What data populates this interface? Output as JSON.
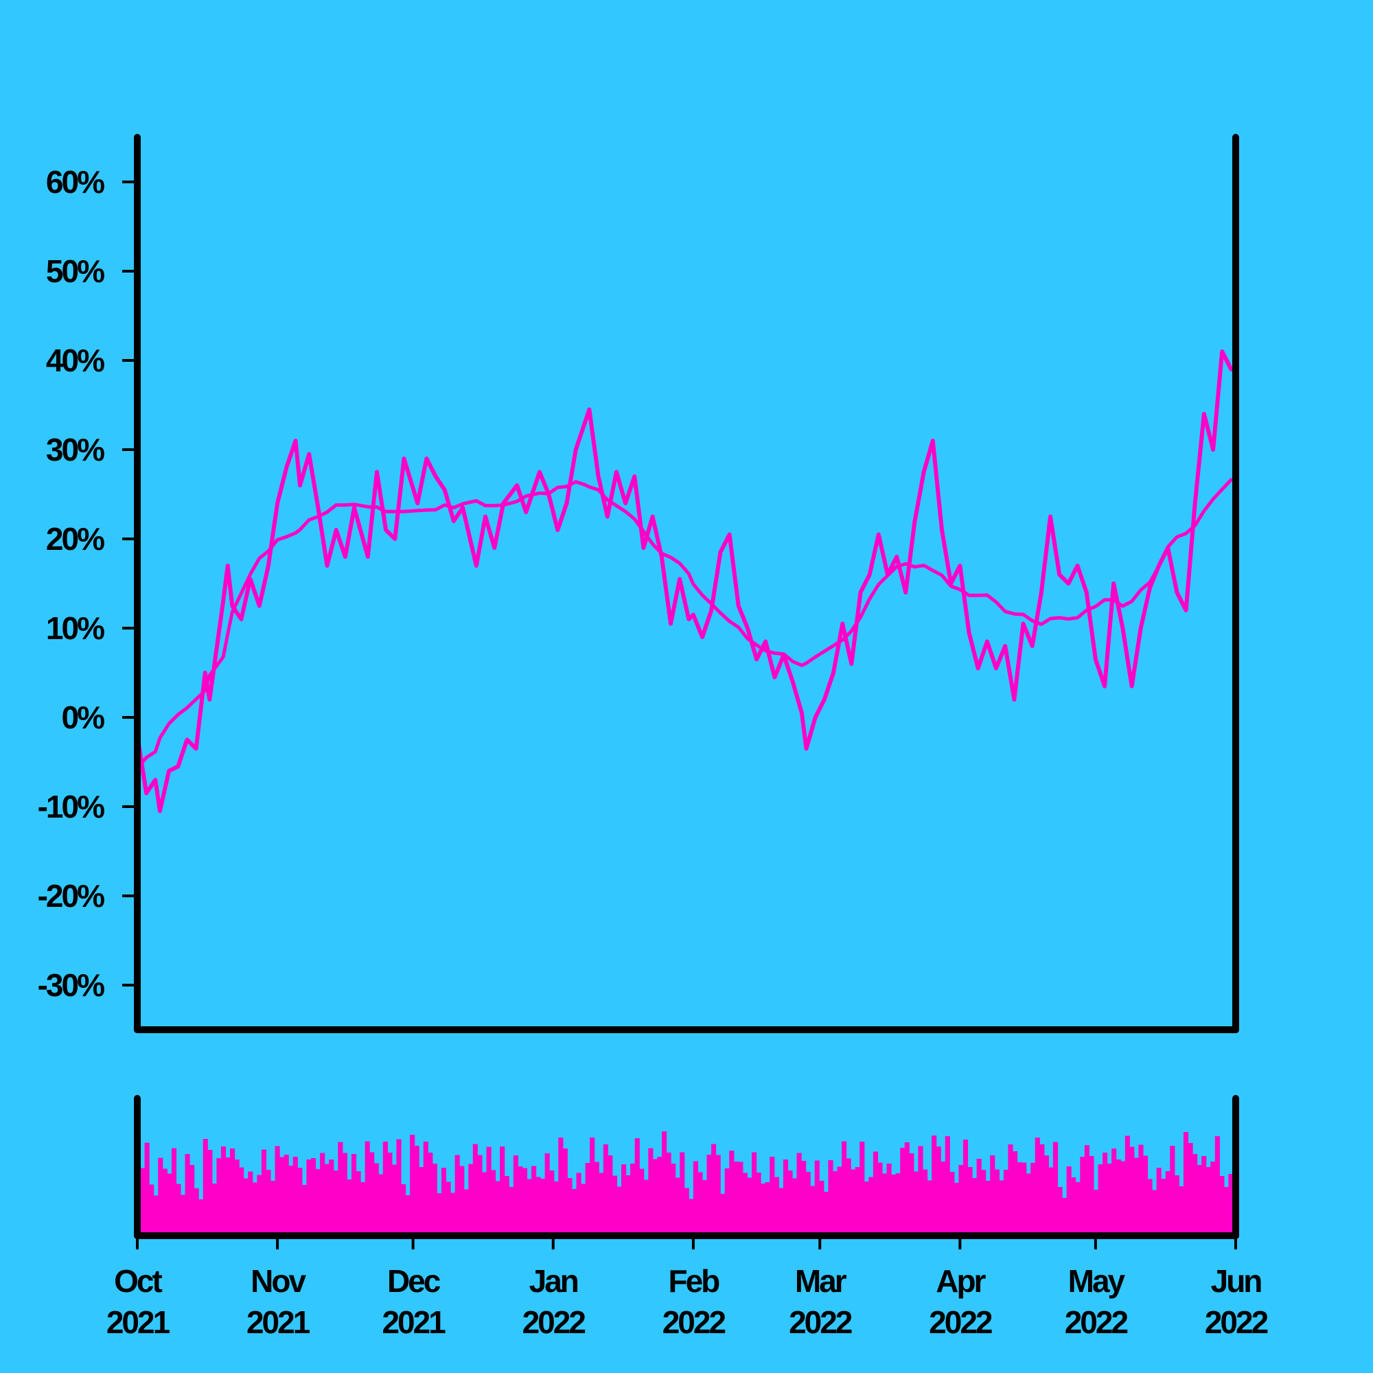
{
  "colors": {
    "background": "#33c7ff",
    "series": "#ff00c8",
    "axes": "#000000"
  },
  "chart_data": {
    "type": "line",
    "x_axis": {
      "type": "date",
      "range": [
        "2021-10-01",
        "2022-06-01"
      ],
      "ticks": [
        {
          "date": "2021-10-01",
          "month": "Oct",
          "year": "2021"
        },
        {
          "date": "2021-11-01",
          "month": "Nov",
          "year": "2021"
        },
        {
          "date": "2021-12-01",
          "month": "Dec",
          "year": "2021"
        },
        {
          "date": "2022-01-01",
          "month": "Jan",
          "year": "2022"
        },
        {
          "date": "2022-02-01",
          "month": "Feb",
          "year": "2022"
        },
        {
          "date": "2022-03-01",
          "month": "Mar",
          "year": "2022"
        },
        {
          "date": "2022-04-01",
          "month": "Apr",
          "year": "2022"
        },
        {
          "date": "2022-05-01",
          "month": "May",
          "year": "2022"
        },
        {
          "date": "2022-06-01",
          "month": "Jun",
          "year": "2022"
        }
      ]
    },
    "y_axis": {
      "range": [
        -35,
        65
      ],
      "ticks": [
        {
          "value": 60,
          "label": "60%"
        },
        {
          "value": 50,
          "label": "50%"
        },
        {
          "value": 40,
          "label": "40%"
        },
        {
          "value": 30,
          "label": "30%"
        },
        {
          "value": 20,
          "label": "20%"
        },
        {
          "value": 10,
          "label": "10%"
        },
        {
          "value": 0,
          "label": "0%"
        },
        {
          "value": -10,
          "label": "-10%"
        },
        {
          "value": -20,
          "label": "-20%"
        },
        {
          "value": -30,
          "label": "-30%"
        }
      ]
    },
    "grid": false,
    "panels": [
      "price",
      "volume"
    ],
    "series": [
      {
        "role": "return",
        "points": [
          [
            "2021-10-01",
            -2
          ],
          [
            "2021-10-03",
            -8.5
          ],
          [
            "2021-10-05",
            -7
          ],
          [
            "2021-10-06",
            -10.5
          ],
          [
            "2021-10-08",
            -6
          ],
          [
            "2021-10-10",
            -5.5
          ],
          [
            "2021-10-12",
            -2.5
          ],
          [
            "2021-10-14",
            -3.5
          ],
          [
            "2021-10-16",
            5
          ],
          [
            "2021-10-17",
            2
          ],
          [
            "2021-10-20",
            13
          ],
          [
            "2021-10-21",
            17
          ],
          [
            "2021-10-22",
            12.5
          ],
          [
            "2021-10-24",
            11
          ],
          [
            "2021-10-26",
            15.5
          ],
          [
            "2021-10-28",
            12.5
          ],
          [
            "2021-10-30",
            17
          ],
          [
            "2021-11-01",
            24
          ],
          [
            "2021-11-03",
            28
          ],
          [
            "2021-11-05",
            31
          ],
          [
            "2021-11-06",
            26
          ],
          [
            "2021-11-08",
            29.5
          ],
          [
            "2021-11-10",
            23.5
          ],
          [
            "2021-11-12",
            17
          ],
          [
            "2021-11-14",
            21
          ],
          [
            "2021-11-16",
            18
          ],
          [
            "2021-11-18",
            23.5
          ],
          [
            "2021-11-21",
            18
          ],
          [
            "2021-11-23",
            27.5
          ],
          [
            "2021-11-25",
            21
          ],
          [
            "2021-11-27",
            20
          ],
          [
            "2021-11-29",
            29
          ],
          [
            "2021-12-02",
            24
          ],
          [
            "2021-12-04",
            29
          ],
          [
            "2021-12-06",
            27
          ],
          [
            "2021-12-08",
            25.5
          ],
          [
            "2021-12-10",
            22
          ],
          [
            "2021-12-12",
            23.5
          ],
          [
            "2021-12-15",
            17
          ],
          [
            "2021-12-17",
            22.5
          ],
          [
            "2021-12-19",
            19
          ],
          [
            "2021-12-21",
            24
          ],
          [
            "2021-12-24",
            26
          ],
          [
            "2021-12-26",
            23
          ],
          [
            "2021-12-29",
            27.5
          ],
          [
            "2021-12-31",
            25
          ],
          [
            "2022-01-02",
            21
          ],
          [
            "2022-01-04",
            24
          ],
          [
            "2022-01-06",
            30
          ],
          [
            "2022-01-08",
            33
          ],
          [
            "2022-01-09",
            34.5
          ],
          [
            "2022-01-11",
            27
          ],
          [
            "2022-01-13",
            22.5
          ],
          [
            "2022-01-15",
            27.5
          ],
          [
            "2022-01-17",
            24
          ],
          [
            "2022-01-19",
            27
          ],
          [
            "2022-01-21",
            19
          ],
          [
            "2022-01-23",
            22.5
          ],
          [
            "2022-01-25",
            18
          ],
          [
            "2022-01-27",
            10.5
          ],
          [
            "2022-01-29",
            15.5
          ],
          [
            "2022-01-31",
            11
          ],
          [
            "2022-02-01",
            11.5
          ],
          [
            "2022-02-03",
            9
          ],
          [
            "2022-02-05",
            12
          ],
          [
            "2022-02-07",
            18.5
          ],
          [
            "2022-02-09",
            20.5
          ],
          [
            "2022-02-11",
            12.5
          ],
          [
            "2022-02-13",
            10
          ],
          [
            "2022-02-15",
            6.5
          ],
          [
            "2022-02-17",
            8.5
          ],
          [
            "2022-02-19",
            4.5
          ],
          [
            "2022-02-21",
            7
          ],
          [
            "2022-02-23",
            4
          ],
          [
            "2022-02-25",
            0.5
          ],
          [
            "2022-02-26",
            -3.5
          ],
          [
            "2022-02-28",
            0
          ],
          [
            "2022-03-02",
            2
          ],
          [
            "2022-03-04",
            5
          ],
          [
            "2022-03-06",
            10.5
          ],
          [
            "2022-03-08",
            6
          ],
          [
            "2022-03-10",
            14
          ],
          [
            "2022-03-12",
            16
          ],
          [
            "2022-03-14",
            20.5
          ],
          [
            "2022-03-16",
            16
          ],
          [
            "2022-03-18",
            18
          ],
          [
            "2022-03-20",
            14
          ],
          [
            "2022-03-22",
            22
          ],
          [
            "2022-03-24",
            27.5
          ],
          [
            "2022-03-26",
            31
          ],
          [
            "2022-03-28",
            21
          ],
          [
            "2022-03-30",
            15
          ],
          [
            "2022-04-01",
            17
          ],
          [
            "2022-04-03",
            9.5
          ],
          [
            "2022-04-05",
            5.5
          ],
          [
            "2022-04-07",
            8.5
          ],
          [
            "2022-04-09",
            5.5
          ],
          [
            "2022-04-11",
            8
          ],
          [
            "2022-04-13",
            2
          ],
          [
            "2022-04-15",
            10.5
          ],
          [
            "2022-04-17",
            8
          ],
          [
            "2022-04-19",
            14
          ],
          [
            "2022-04-21",
            22.5
          ],
          [
            "2022-04-23",
            16
          ],
          [
            "2022-04-25",
            15
          ],
          [
            "2022-04-27",
            17
          ],
          [
            "2022-04-29",
            14
          ],
          [
            "2022-05-01",
            6.5
          ],
          [
            "2022-05-03",
            3.5
          ],
          [
            "2022-05-05",
            15
          ],
          [
            "2022-05-07",
            10
          ],
          [
            "2022-05-09",
            3.5
          ],
          [
            "2022-05-11",
            10
          ],
          [
            "2022-05-13",
            14.5
          ],
          [
            "2022-05-15",
            17
          ],
          [
            "2022-05-17",
            19
          ],
          [
            "2022-05-19",
            14
          ],
          [
            "2022-05-21",
            12
          ],
          [
            "2022-05-23",
            24
          ],
          [
            "2022-05-25",
            34
          ],
          [
            "2022-05-27",
            30
          ],
          [
            "2022-05-29",
            41
          ],
          [
            "2022-05-31",
            39
          ]
        ]
      }
    ]
  }
}
